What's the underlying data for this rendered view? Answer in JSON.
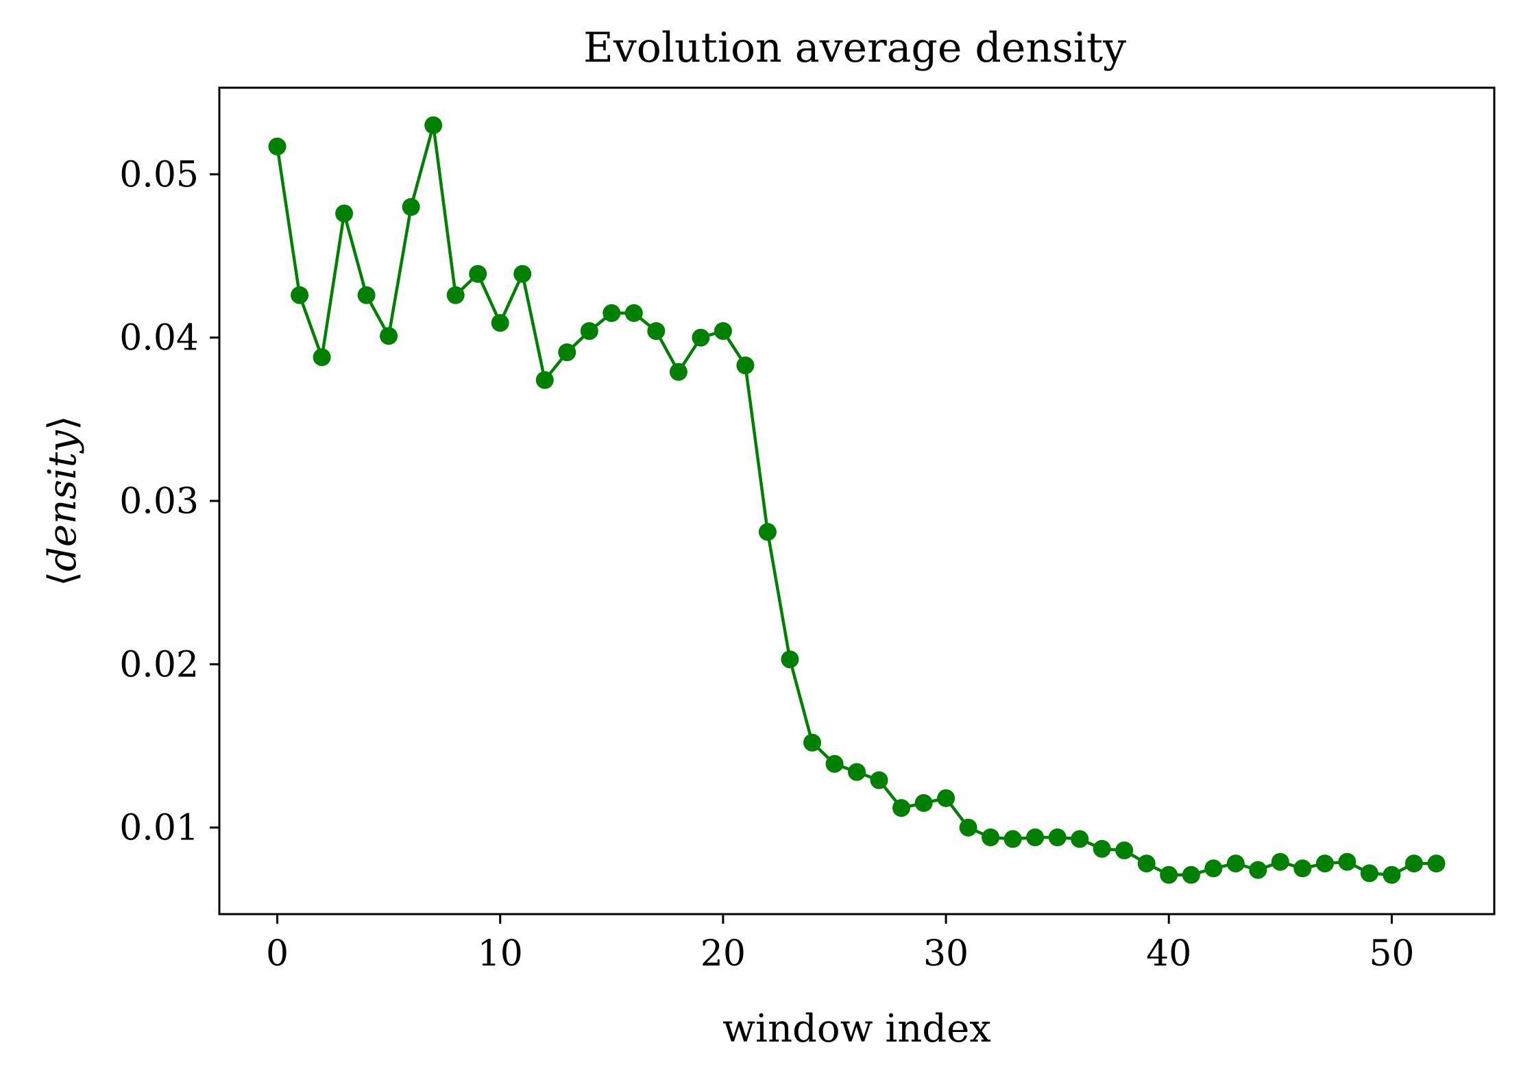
{
  "chart_data": {
    "type": "line",
    "title": "Evolution average density",
    "xlabel": "window index",
    "ylabel": "⟨density⟩",
    "ylabel_parts": {
      "open": "⟨",
      "word": "density",
      "close": "⟩"
    },
    "xlim": [
      -2.6,
      54.6
    ],
    "ylim": [
      0.0047,
      0.0553
    ],
    "xticks": [
      0,
      10,
      20,
      30,
      40,
      50
    ],
    "xtick_labels": [
      "0",
      "10",
      "20",
      "30",
      "40",
      "50"
    ],
    "yticks": [
      0.01,
      0.02,
      0.03,
      0.04,
      0.05
    ],
    "ytick_labels": [
      "0.01",
      "0.02",
      "0.03",
      "0.04",
      "0.05"
    ],
    "grid": false,
    "marker": "circle",
    "color": "#008000",
    "series": [
      {
        "x": [
          0,
          1,
          2,
          3,
          4,
          5,
          6,
          7,
          8,
          9,
          10,
          11,
          12,
          13,
          14,
          15,
          16,
          17,
          18,
          19,
          20,
          21,
          22,
          23,
          24,
          25,
          26,
          27,
          28,
          29,
          30,
          31,
          32,
          33,
          34,
          35,
          36,
          37,
          38,
          39,
          40,
          41,
          42,
          43,
          44,
          45,
          46,
          47,
          48,
          49,
          50,
          51,
          52
        ],
        "y": [
          0.0517,
          0.0426,
          0.0388,
          0.0476,
          0.0426,
          0.0401,
          0.048,
          0.053,
          0.0426,
          0.0439,
          0.0409,
          0.0439,
          0.0374,
          0.0391,
          0.0404,
          0.0415,
          0.0415,
          0.0404,
          0.0379,
          0.04,
          0.0404,
          0.0383,
          0.0281,
          0.0203,
          0.0152,
          0.0139,
          0.0134,
          0.0129,
          0.0112,
          0.0115,
          0.0118,
          0.01,
          0.0094,
          0.0093,
          0.0094,
          0.0094,
          0.0093,
          0.0087,
          0.0086,
          0.0078,
          0.0071,
          0.0071,
          0.0075,
          0.0078,
          0.0074,
          0.0079,
          0.0075,
          0.0078,
          0.0079,
          0.0072,
          0.0071,
          0.0078,
          0.0078
        ]
      }
    ]
  }
}
